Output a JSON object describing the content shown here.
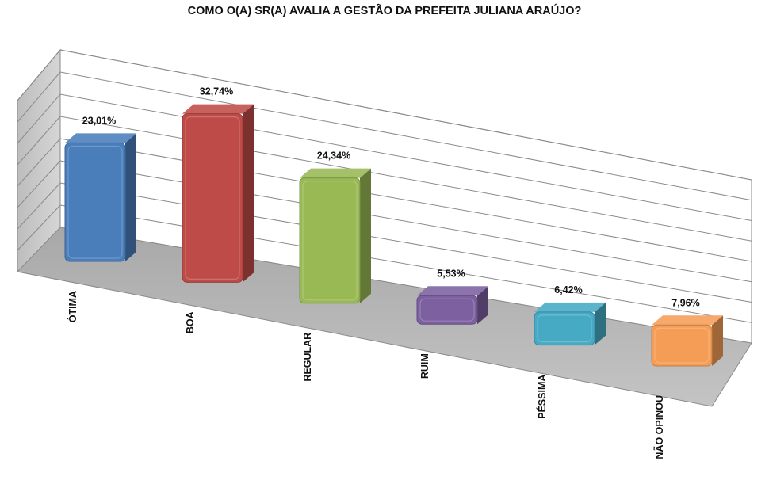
{
  "chart_data": {
    "type": "bar",
    "title": "COMO O(A) SR(A) AVALIA A GESTÃO DA PREFEITA JULIANA ARAÚJO?",
    "categories": [
      "ÓTIMA",
      "BOA",
      "REGULAR",
      "RUIM",
      "PÉSSIMA",
      "NÃO OPINOU"
    ],
    "values": [
      23.01,
      32.74,
      24.34,
      5.53,
      6.42,
      7.96
    ],
    "value_labels": [
      "23,01%",
      "32,74%",
      "24,34%",
      "5,53%",
      "6,42%",
      "7,96%"
    ],
    "colors": [
      "#4a7ebb",
      "#be4b48",
      "#98b954",
      "#7d60a0",
      "#46aac5",
      "#f59d56"
    ],
    "ylim": [
      0,
      40
    ],
    "grid": true,
    "style": "3d"
  }
}
